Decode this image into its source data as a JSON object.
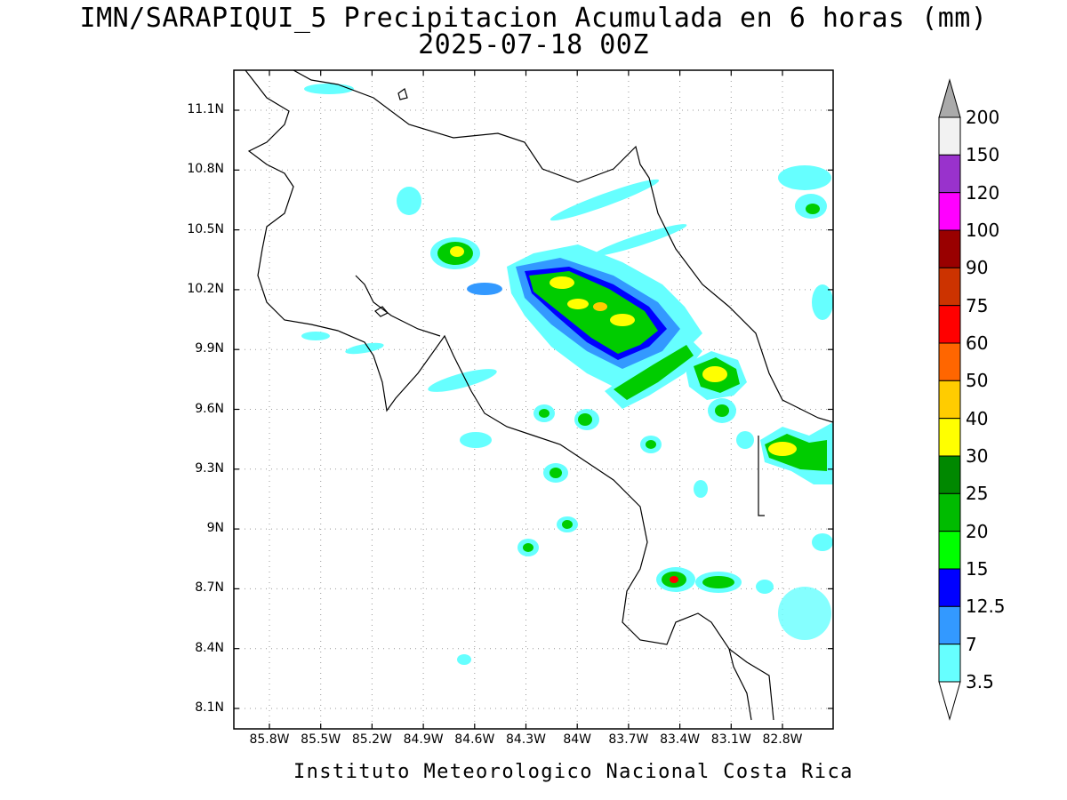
{
  "title": {
    "line1": "IMN/SARAPIQUI_5 Precipitacion Acumulada en 6 horas (mm)",
    "line2": "2025-07-18 00Z"
  },
  "footer": "Instituto Meteorologico Nacional Costa Rica",
  "lat_ticks": [
    "11.1N",
    "10.8N",
    "10.5N",
    "10.2N",
    "9.9N",
    "9.6N",
    "9.3N",
    "9N",
    "8.7N",
    "8.4N",
    "8.1N"
  ],
  "lon_ticks": [
    "85.8W",
    "85.5W",
    "85.2W",
    "84.9W",
    "84.6W",
    "84.3W",
    "84W",
    "83.7W",
    "83.4W",
    "83.1W",
    "82.8W"
  ],
  "colorbar": {
    "labels": [
      "200",
      "150",
      "120",
      "100",
      "90",
      "75",
      "60",
      "50",
      "40",
      "30",
      "25",
      "20",
      "15",
      "12.5",
      "7",
      "3.5"
    ],
    "colors": [
      "#f2f2f2",
      "#9932cc",
      "#ff00ff",
      "#990000",
      "#cc3300",
      "#ff0000",
      "#ff6600",
      "#ffcc00",
      "#ffff00",
      "#008800",
      "#00bb00",
      "#00ff00",
      "#0000ff",
      "#3399ff",
      "#66ffff"
    ],
    "over_color": "#aaaaaa"
  }
}
